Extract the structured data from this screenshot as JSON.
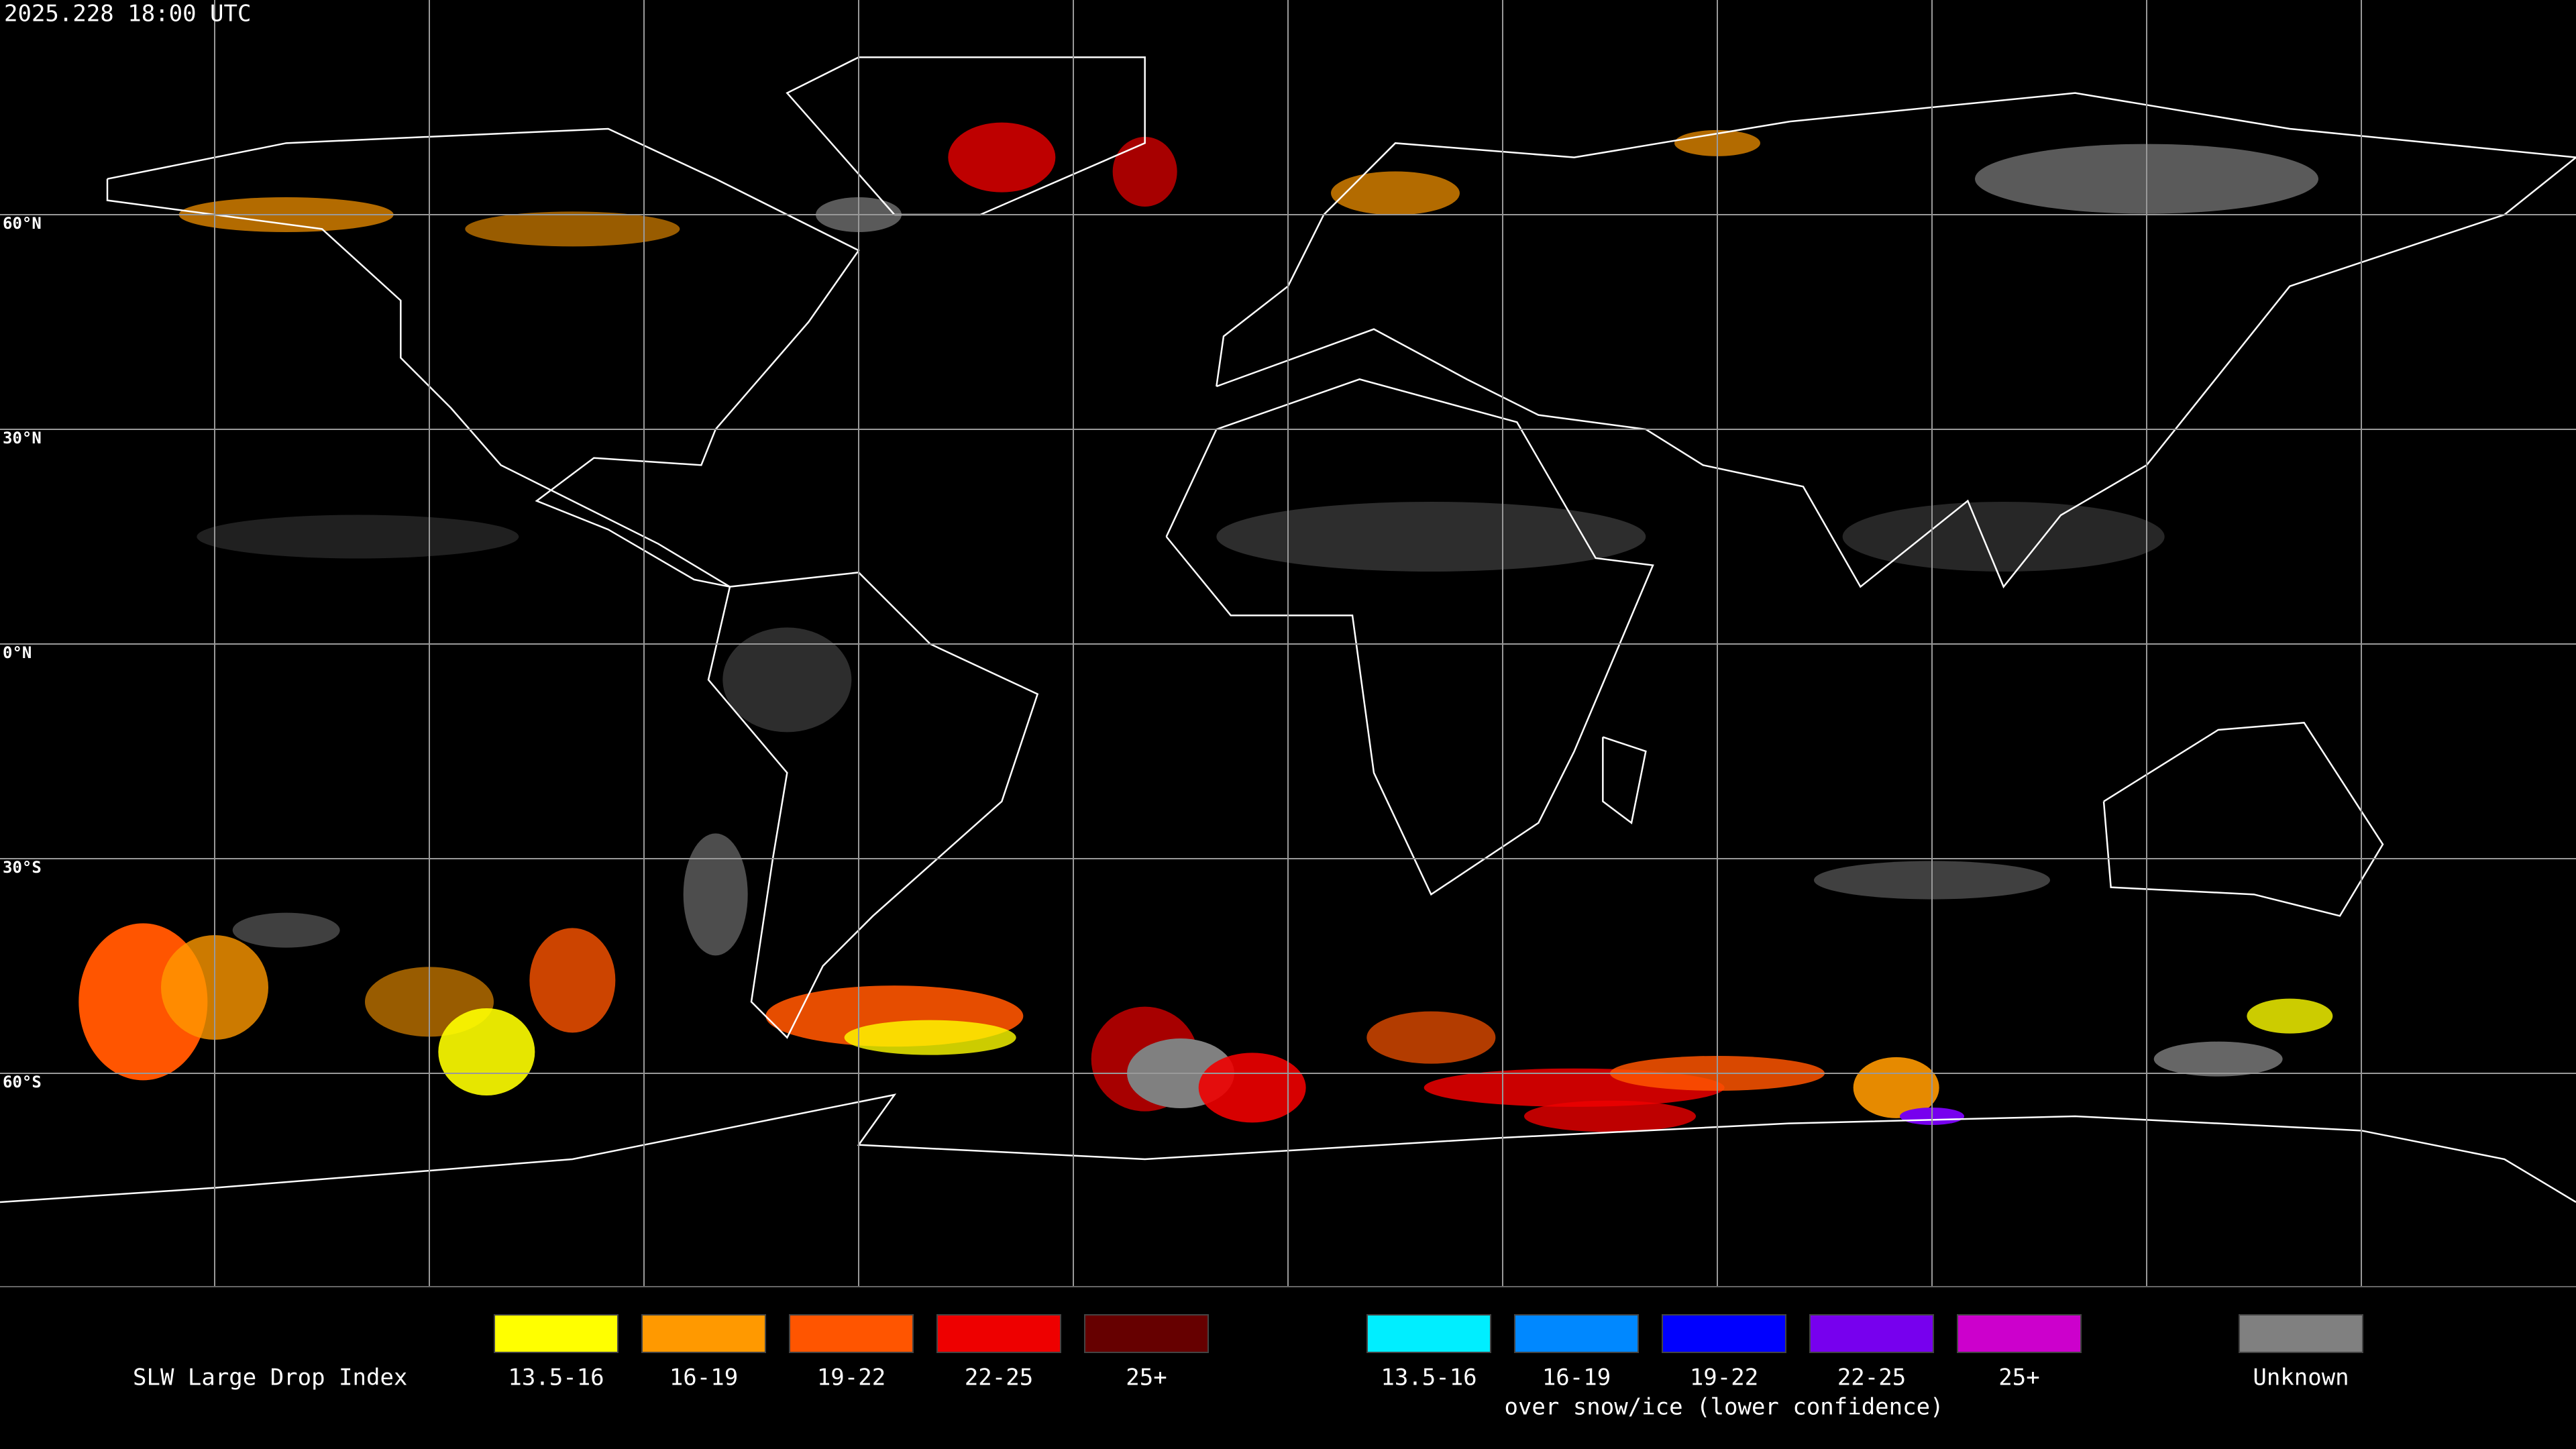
{
  "header": {
    "title": "2025.228 18:00 UTC"
  },
  "map": {
    "latitude_labels": [
      "60°N",
      "30°N",
      "0°N",
      "30°S",
      "60°S"
    ]
  },
  "legend": {
    "title": "SLW Large Drop Index",
    "groups": [
      {
        "entries": [
          {
            "label": "13.5-16",
            "color": "#ffff00"
          },
          {
            "label": "16-19",
            "color": "#ff9900"
          },
          {
            "label": "19-22",
            "color": "#ff5500"
          },
          {
            "label": "22-25",
            "color": "#ee0000"
          },
          {
            "label": "25+",
            "color": "#660000"
          }
        ]
      },
      {
        "caption": "over snow/ice (lower confidence)",
        "entries": [
          {
            "label": "13.5-16",
            "color": "#00eeff"
          },
          {
            "label": "16-19",
            "color": "#0088ff"
          },
          {
            "label": "19-22",
            "color": "#0000ff"
          },
          {
            "label": "22-25",
            "color": "#7700ee"
          },
          {
            "label": "25+",
            "color": "#cc00cc"
          }
        ]
      },
      {
        "entries": [
          {
            "label": "Unknown",
            "color": "#808080"
          }
        ]
      }
    ]
  }
}
